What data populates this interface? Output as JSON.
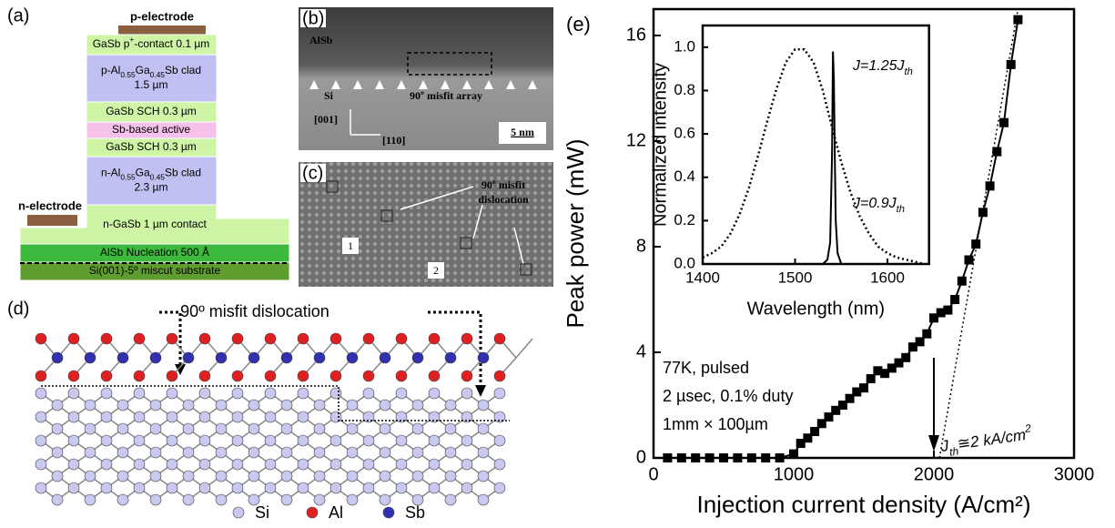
{
  "panel_a": {
    "label": "(a)",
    "p_electrode": "p-electrode",
    "n_electrode": "n-electrode",
    "layers": [
      {
        "lines": [
          [
            "GaSb p",
            {
              "sup": "+"
            },
            "-contact 0.1 µm"
          ]
        ]
      },
      {
        "lines": [
          [
            "p-Al",
            {
              "sub": "0.55"
            },
            "Ga",
            {
              "sub": "0.45"
            },
            "Sb clad"
          ],
          [
            "1.5 µm"
          ]
        ]
      },
      {
        "lines": [
          [
            "GaSb SCH 0.3 µm"
          ]
        ]
      },
      {
        "lines": [
          [
            "Sb-based active"
          ]
        ]
      },
      {
        "lines": [
          [
            "GaSb SCH 0.3 µm"
          ]
        ]
      },
      {
        "lines": [
          [
            "n-Al",
            {
              "sub": "0.55"
            },
            "Ga",
            {
              "sub": "0.45"
            },
            "Sb clad"
          ],
          [
            "2.3 µm"
          ]
        ]
      },
      {
        "lines": [
          [
            "n-GaSb 1 µm contact"
          ]
        ]
      },
      {
        "lines": [
          [
            "AlSb Nucleation 500 Å"
          ]
        ]
      },
      {
        "lines": [
          [
            "Si(001)-5º miscut substrate"
          ]
        ]
      }
    ]
  },
  "panel_b": {
    "label": "(b)",
    "top_layer": "AlSb",
    "bottom_layer": "Si",
    "array_label": "90º misfit array",
    "dir_vertical": "[001]",
    "dir_horizontal": "[110]",
    "scale_bar": "5 nm"
  },
  "panel_c": {
    "label": "(c)",
    "callout": [
      "90º misfit",
      "dislocation"
    ],
    "marker_1": "1",
    "marker_2": "2"
  },
  "panel_d": {
    "label": "(d)",
    "title": "90º misfit dislocation",
    "legend": [
      "Si",
      "Al",
      "Sb"
    ]
  },
  "panel_e_label": "(e)",
  "chart_data": [
    {
      "type": "line",
      "xlabel": "Injection current density (A/cm²)",
      "ylabel": "Peak power (mW)",
      "x": [
        100,
        200,
        300,
        400,
        500,
        600,
        700,
        800,
        900,
        1000,
        1050,
        1100,
        1150,
        1200,
        1250,
        1300,
        1350,
        1400,
        1450,
        1500,
        1550,
        1600,
        1650,
        1700,
        1750,
        1800,
        1850,
        1900,
        1950,
        2000,
        2050,
        2100,
        2150,
        2200,
        2250,
        2300,
        2350,
        2400,
        2450,
        2500,
        2550,
        2600
      ],
      "series": [
        {
          "color": "#000000",
          "marker": "square",
          "linestyle": "solid",
          "values": [
            0,
            0,
            0,
            0,
            0,
            0,
            0,
            0,
            0,
            0.15,
            0.55,
            0.75,
            1.0,
            1.3,
            1.55,
            1.8,
            2.0,
            2.25,
            2.5,
            2.65,
            3.0,
            3.3,
            3.2,
            3.4,
            3.6,
            3.8,
            4.2,
            4.4,
            4.7,
            5.3,
            5.5,
            5.6,
            6.0,
            6.7,
            7.5,
            8.1,
            9.3,
            10.3,
            11.6,
            12.7,
            14.9,
            16.6
          ]
        },
        {
          "color": "#000000",
          "linestyle": "dotted",
          "x": [
            2040,
            2600
          ],
          "values": [
            0,
            17
          ]
        }
      ],
      "xlim": [
        0,
        3000
      ],
      "ylim": [
        0,
        17
      ],
      "xticks": [
        0,
        1000,
        2000,
        3000
      ],
      "yticks": [
        0,
        4,
        8,
        12,
        16
      ],
      "conditions": [
        "77K, pulsed",
        "2 µsec, 0.1% duty",
        "1mm × 100µm"
      ],
      "threshold_x": 2000,
      "threshold_label": [
        "J",
        {
          "sub": "th"
        },
        "≅2 kA/cm",
        {
          "sup": "2"
        }
      ]
    },
    {
      "type": "line",
      "xlabel": "Wavelength (nm)",
      "ylabel": "Normalized intensity",
      "series": [
        {
          "color": "#000000",
          "linestyle": "dotted",
          "x": [
            1400,
            1410,
            1420,
            1430,
            1440,
            1450,
            1460,
            1470,
            1480,
            1490,
            1500,
            1510,
            1520,
            1530,
            1540,
            1550,
            1560,
            1570,
            1580,
            1590,
            1600,
            1610,
            1620,
            1630,
            1640
          ],
          "values": [
            0.03,
            0.05,
            0.08,
            0.14,
            0.23,
            0.35,
            0.5,
            0.66,
            0.81,
            0.93,
            0.99,
            0.99,
            0.93,
            0.8,
            0.63,
            0.47,
            0.33,
            0.22,
            0.14,
            0.08,
            0.05,
            0.03,
            0.02,
            0.01,
            0
          ]
        },
        {
          "color": "#000000",
          "linestyle": "solid",
          "x": [
            1400,
            1530,
            1535,
            1538,
            1540,
            1541,
            1542,
            1543,
            1544,
            1546,
            1550,
            1560,
            1640
          ],
          "values": [
            0,
            0,
            0.02,
            0.1,
            0.5,
            0.98,
            0.85,
            0.5,
            0.2,
            0.05,
            0,
            0,
            0
          ]
        }
      ],
      "xlim": [
        1400,
        1645
      ],
      "ylim": [
        0,
        1.1
      ],
      "xticks": [
        1400,
        1500,
        1600
      ],
      "yticks": [
        {
          "value": 0,
          "label": "0.0"
        },
        0.2,
        0.4,
        0.6,
        0.8,
        {
          "value": 1,
          "label": "1.0"
        }
      ],
      "annotations": [
        [
          "J=1.25J",
          {
            "sub": "th"
          }
        ],
        [
          "J=0.9J",
          {
            "sub": "th"
          }
        ]
      ]
    }
  ]
}
